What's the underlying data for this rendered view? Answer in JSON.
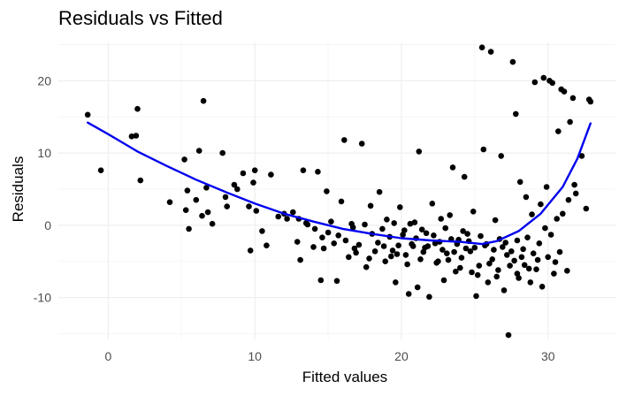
{
  "chart_data": {
    "type": "scatter",
    "title": "Residuals vs Fitted",
    "xlabel": "Fitted values",
    "ylabel": "Residuals",
    "xlim": [
      -3.4,
      34.6
    ],
    "ylim": [
      -15.8,
      25.3
    ],
    "x_ticks": [
      0,
      10,
      20,
      30
    ],
    "y_ticks": [
      -10,
      0,
      10,
      20
    ],
    "grid": true,
    "legend": "none",
    "point_color": "#000000",
    "smooth_color": "#0000ee",
    "points": [
      [
        -1.4,
        15.3
      ],
      [
        -0.5,
        7.6
      ],
      [
        1.6,
        12.3
      ],
      [
        1.9,
        12.4
      ],
      [
        2.0,
        16.1
      ],
      [
        2.2,
        6.2
      ],
      [
        4.2,
        3.2
      ],
      [
        5.2,
        9.1
      ],
      [
        5.3,
        2.1
      ],
      [
        5.4,
        4.8
      ],
      [
        5.5,
        -0.5
      ],
      [
        6.0,
        3.5
      ],
      [
        6.2,
        10.3
      ],
      [
        6.4,
        1.3
      ],
      [
        6.5,
        17.2
      ],
      [
        6.7,
        5.2
      ],
      [
        6.8,
        1.8
      ],
      [
        7.1,
        0.2
      ],
      [
        7.8,
        10.0
      ],
      [
        8.0,
        3.9
      ],
      [
        8.1,
        2.6
      ],
      [
        8.6,
        5.6
      ],
      [
        8.8,
        5.0
      ],
      [
        9.2,
        7.2
      ],
      [
        9.6,
        2.6
      ],
      [
        9.7,
        -3.5
      ],
      [
        9.9,
        5.9
      ],
      [
        10.0,
        7.6
      ],
      [
        10.1,
        2.0
      ],
      [
        10.5,
        -0.8
      ],
      [
        10.8,
        -2.8
      ],
      [
        11.1,
        7.0
      ],
      [
        11.6,
        1.2
      ],
      [
        12.0,
        1.6
      ],
      [
        12.2,
        0.9
      ],
      [
        12.6,
        1.8
      ],
      [
        12.9,
        -2.3
      ],
      [
        13.1,
        -4.8
      ],
      [
        13.3,
        7.6
      ],
      [
        13.6,
        0.1
      ],
      [
        14.0,
        -3.0
      ],
      [
        14.3,
        7.4
      ],
      [
        14.5,
        -7.6
      ],
      [
        14.7,
        -3.2
      ],
      [
        14.9,
        4.7
      ],
      [
        15.0,
        -1.0
      ],
      [
        15.4,
        -2.5
      ],
      [
        15.6,
        -7.7
      ],
      [
        15.9,
        3.3
      ],
      [
        16.1,
        11.8
      ],
      [
        16.4,
        -4.4
      ],
      [
        16.6,
        0.2
      ],
      [
        16.9,
        -3.8
      ],
      [
        17.3,
        11.3
      ],
      [
        17.6,
        -5.8
      ],
      [
        17.9,
        2.7
      ],
      [
        18.2,
        -3.6
      ],
      [
        18.5,
        4.6
      ],
      [
        18.8,
        -2.9
      ],
      [
        19.0,
        0.8
      ],
      [
        19.3,
        -4.3
      ],
      [
        19.6,
        -7.9
      ],
      [
        19.9,
        2.5
      ],
      [
        20.2,
        -0.7
      ],
      [
        20.4,
        -5.4
      ],
      [
        20.5,
        -9.5
      ],
      [
        20.7,
        -2.6
      ],
      [
        20.9,
        0.4
      ],
      [
        21.1,
        -8.6
      ],
      [
        21.2,
        10.2
      ],
      [
        21.5,
        -3.7
      ],
      [
        21.7,
        -1.1
      ],
      [
        21.9,
        -9.9
      ],
      [
        22.1,
        3.0
      ],
      [
        22.3,
        -2.5
      ],
      [
        22.5,
        -5.0
      ],
      [
        22.7,
        0.9
      ],
      [
        22.9,
        -7.6
      ],
      [
        23.1,
        -3.9
      ],
      [
        23.3,
        1.4
      ],
      [
        23.5,
        8.0
      ],
      [
        23.7,
        -6.4
      ],
      [
        23.9,
        -2.0
      ],
      [
        24.1,
        -4.5
      ],
      [
        24.3,
        6.7
      ],
      [
        24.5,
        -1.2
      ],
      [
        24.7,
        -3.6
      ],
      [
        24.9,
        1.9
      ],
      [
        25.1,
        -9.8
      ],
      [
        25.3,
        -5.6
      ],
      [
        25.5,
        24.6
      ],
      [
        25.6,
        10.5
      ],
      [
        25.7,
        -2.8
      ],
      [
        25.9,
        -7.9
      ],
      [
        26.1,
        24.0
      ],
      [
        26.2,
        -4.7
      ],
      [
        26.4,
        0.7
      ],
      [
        26.6,
        -6.2
      ],
      [
        26.8,
        9.6
      ],
      [
        27.0,
        -9.0
      ],
      [
        27.2,
        -4.1
      ],
      [
        27.3,
        -15.2
      ],
      [
        27.6,
        22.6
      ],
      [
        27.8,
        15.4
      ],
      [
        27.9,
        -6.7
      ],
      [
        28.1,
        6.0
      ],
      [
        28.3,
        -3.3
      ],
      [
        28.5,
        3.9
      ],
      [
        28.7,
        -6.0
      ],
      [
        28.9,
        1.5
      ],
      [
        29.1,
        19.8
      ],
      [
        29.3,
        -4.8
      ],
      [
        29.5,
        2.9
      ],
      [
        29.7,
        20.4
      ],
      [
        29.9,
        5.3
      ],
      [
        30.1,
        20.0
      ],
      [
        30.3,
        19.7
      ],
      [
        30.5,
        -5.1
      ],
      [
        30.7,
        13.0
      ],
      [
        30.9,
        18.8
      ],
      [
        31.1,
        18.5
      ],
      [
        31.3,
        -6.3
      ],
      [
        31.5,
        14.3
      ],
      [
        31.7,
        17.6
      ],
      [
        31.9,
        4.4
      ],
      [
        32.3,
        9.6
      ],
      [
        32.6,
        2.3
      ],
      [
        32.8,
        17.4
      ],
      [
        32.9,
        17.1
      ],
      [
        13.0,
        0.9
      ],
      [
        13.5,
        0.3
      ],
      [
        14.1,
        -0.5
      ],
      [
        14.6,
        -1.7
      ],
      [
        15.2,
        0.5
      ],
      [
        15.7,
        -1.4
      ],
      [
        16.2,
        -2.1
      ],
      [
        16.7,
        -0.3
      ],
      [
        17.1,
        -2.7
      ],
      [
        17.5,
        0.1
      ],
      [
        18.0,
        -1.2
      ],
      [
        18.4,
        -2.4
      ],
      [
        18.7,
        -0.5
      ],
      [
        19.2,
        -1.6
      ],
      [
        19.5,
        0.3
      ],
      [
        19.8,
        -2.8
      ],
      [
        20.1,
        -1.3
      ],
      [
        20.6,
        0.2
      ],
      [
        21.0,
        -1.8
      ],
      [
        21.4,
        -0.6
      ],
      [
        21.8,
        -2.9
      ],
      [
        22.2,
        -1.4
      ],
      [
        22.6,
        -2.3
      ],
      [
        23.0,
        -0.4
      ],
      [
        23.4,
        -1.9
      ],
      [
        23.8,
        -2.6
      ],
      [
        24.2,
        -0.8
      ],
      [
        24.6,
        -2.2
      ],
      [
        25.0,
        -3.1
      ],
      [
        25.4,
        -1.5
      ],
      [
        25.8,
        -2.6
      ],
      [
        26.3,
        -3.4
      ],
      [
        26.7,
        -1.9
      ],
      [
        27.1,
        -2.4
      ],
      [
        27.5,
        -3.6
      ],
      [
        27.9,
        -2.1
      ],
      [
        28.2,
        -4.4
      ],
      [
        28.6,
        -1.7
      ],
      [
        29.0,
        -3.9
      ],
      [
        29.4,
        -2.5
      ],
      [
        29.8,
        -0.4
      ],
      [
        30.2,
        -1.3
      ],
      [
        30.6,
        0.9
      ],
      [
        31.0,
        1.6
      ],
      [
        31.4,
        3.5
      ],
      [
        31.8,
        5.6
      ],
      [
        19.4,
        -3.5
      ],
      [
        20.3,
        -4.1
      ],
      [
        21.3,
        -4.7
      ],
      [
        22.4,
        -5.2
      ],
      [
        23.2,
        -4.8
      ],
      [
        24.0,
        -5.9
      ],
      [
        24.8,
        -6.5
      ],
      [
        25.2,
        -6.9
      ],
      [
        26.0,
        -5.3
      ],
      [
        26.5,
        -7.1
      ],
      [
        27.4,
        -5.6
      ],
      [
        28.0,
        -7.3
      ],
      [
        28.8,
        -7.9
      ],
      [
        29.6,
        -8.5
      ],
      [
        30.4,
        -6.7
      ],
      [
        18.9,
        -5.0
      ],
      [
        17.8,
        -4.6
      ],
      [
        16.8,
        -3.2
      ],
      [
        26.9,
        -3.0
      ],
      [
        27.7,
        -4.9
      ],
      [
        28.4,
        -5.5
      ],
      [
        29.2,
        -6.1
      ],
      [
        30.0,
        -4.4
      ],
      [
        30.8,
        -3.7
      ],
      [
        24.4,
        -3.2
      ],
      [
        23.6,
        -3.7
      ],
      [
        22.8,
        -3.4
      ],
      [
        21.6,
        -3.1
      ],
      [
        20.8,
        -2.9
      ],
      [
        19.7,
        -4.0
      ]
    ],
    "smooth_line": [
      [
        -1.4,
        14.2
      ],
      [
        0.0,
        12.6
      ],
      [
        2.0,
        10.2
      ],
      [
        4.0,
        8.2
      ],
      [
        6.0,
        6.3
      ],
      [
        8.0,
        4.6
      ],
      [
        10.0,
        3.0
      ],
      [
        12.0,
        1.6
      ],
      [
        14.0,
        0.5
      ],
      [
        16.0,
        -0.5
      ],
      [
        18.0,
        -1.2
      ],
      [
        20.0,
        -1.8
      ],
      [
        22.0,
        -2.1
      ],
      [
        24.0,
        -2.3
      ],
      [
        25.5,
        -2.6
      ],
      [
        26.5,
        -2.2
      ],
      [
        28.0,
        -0.8
      ],
      [
        29.5,
        1.6
      ],
      [
        31.0,
        5.3
      ],
      [
        32.0,
        9.2
      ],
      [
        32.9,
        14.1
      ]
    ]
  }
}
